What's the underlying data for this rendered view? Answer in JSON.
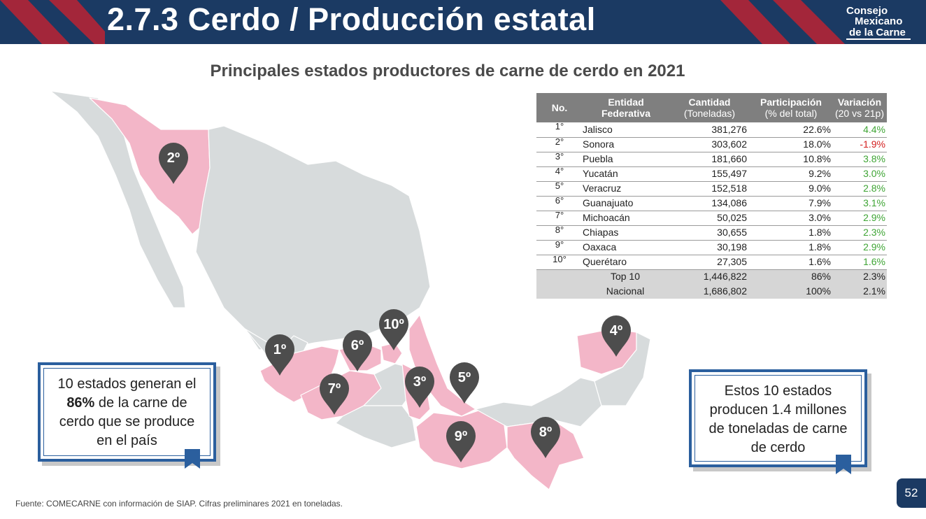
{
  "header": {
    "title": "2.7.3 Cerdo / Producción estatal"
  },
  "logo": {
    "line1": "Consejo",
    "line2": "Mexicano",
    "line3": "de la Carne"
  },
  "subtitle": "Principales estados productores de carne de cerdo en 2021",
  "table": {
    "headers": {
      "no": "No.",
      "entidad_1": "Entidad",
      "entidad_2": "Federativa",
      "cantidad_1": "Cantidad",
      "cantidad_2": "(Toneladas)",
      "participacion_1": "Participación",
      "participacion_2": "(% del total)",
      "variacion_1": "Variación",
      "variacion_2": "(20 vs 21p)"
    },
    "rows": [
      {
        "no": "1°",
        "entidad": "Jalisco",
        "cantidad": "381,276",
        "participacion": "22.6%",
        "variacion": "4.4%"
      },
      {
        "no": "2°",
        "entidad": "Sonora",
        "cantidad": "303,602",
        "participacion": "18.0%",
        "variacion": "-1.9%"
      },
      {
        "no": "3°",
        "entidad": "Puebla",
        "cantidad": "181,660",
        "participacion": "10.8%",
        "variacion": "3.8%"
      },
      {
        "no": "4°",
        "entidad": "Yucatán",
        "cantidad": "155,497",
        "participacion": "9.2%",
        "variacion": "3.0%"
      },
      {
        "no": "5°",
        "entidad": "Veracruz",
        "cantidad": "152,518",
        "participacion": "9.0%",
        "variacion": "2.8%"
      },
      {
        "no": "6°",
        "entidad": "Guanajuato",
        "cantidad": "134,086",
        "participacion": "7.9%",
        "variacion": "3.1%"
      },
      {
        "no": "7°",
        "entidad": "Michoacán",
        "cantidad": "50,025",
        "participacion": "3.0%",
        "variacion": "2.9%"
      },
      {
        "no": "8°",
        "entidad": "Chiapas",
        "cantidad": "30,655",
        "participacion": "1.8%",
        "variacion": "2.3%"
      },
      {
        "no": "9°",
        "entidad": "Oaxaca",
        "cantidad": "30,198",
        "participacion": "1.8%",
        "variacion": "2.9%"
      },
      {
        "no": "10°",
        "entidad": "Querétaro",
        "cantidad": "27,305",
        "participacion": "1.6%",
        "variacion": "1.6%"
      }
    ],
    "totals": [
      {
        "label": "Top 10",
        "cantidad": "1,446,822",
        "participacion": "86%",
        "variacion": "2.3%"
      },
      {
        "label": "Nacional",
        "cantidad": "1,686,802",
        "participacion": "100%",
        "variacion": "2.1%"
      }
    ]
  },
  "map": {
    "pins": [
      "2º",
      "1º",
      "6º",
      "10º",
      "7º",
      "3º",
      "5º",
      "9º",
      "8º",
      "4º"
    ]
  },
  "callout_left": {
    "line1": "10 estados generan el",
    "bold": "86%",
    "line2_rest": " de la carne de",
    "line3": "cerdo que se produce",
    "line4": "en el país"
  },
  "callout_right": {
    "line1": "Estos 10 estados",
    "line2": "producen 1.4 millones",
    "line3": "de toneladas de carne",
    "line4": "de cerdo"
  },
  "footnote": "Fuente: COMECARNE con información de SIAP. Cifras preliminares 2021 en toneladas.",
  "page_number": "52",
  "colors": {
    "header_bg": "#1b3a63",
    "accent_red": "#a3263a",
    "map_gray": "#d7dbdc",
    "map_pink": "#f3b6c8",
    "pin": "#4d4d4d",
    "positive": "#3fa535",
    "negative": "#d42020",
    "callout_border": "#2b5f9e"
  }
}
